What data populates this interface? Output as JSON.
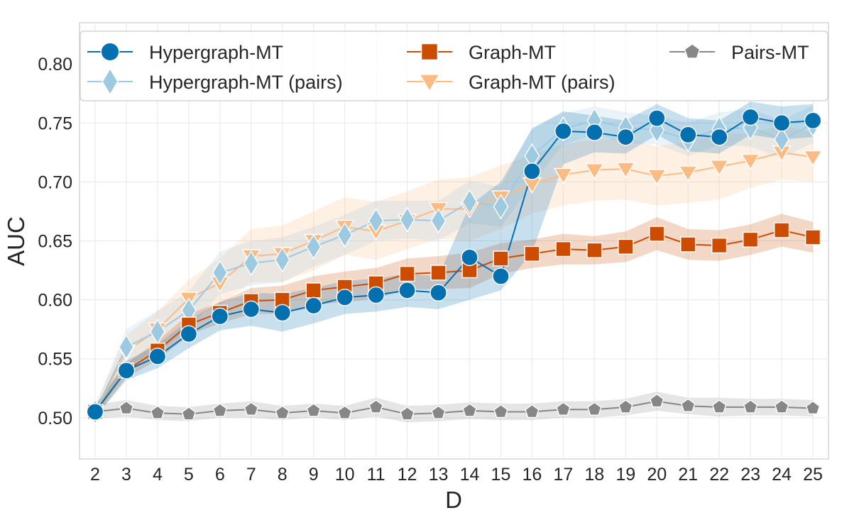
{
  "chart_data": {
    "type": "line",
    "xlabel": "D",
    "ylabel": "AUC",
    "x": [
      2,
      3,
      4,
      5,
      6,
      7,
      8,
      9,
      10,
      11,
      12,
      13,
      14,
      15,
      16,
      17,
      18,
      19,
      20,
      21,
      22,
      23,
      24,
      25
    ],
    "xlim": [
      1.5,
      25.5
    ],
    "ylim": [
      0.465,
      0.835
    ],
    "yticks": [
      0.5,
      0.55,
      0.6,
      0.65,
      0.7,
      0.75,
      0.8
    ],
    "grid": true,
    "legend_position": "top",
    "series": [
      {
        "name": "Graph-MT (pairs)",
        "color": "#fdbb84",
        "marker": "triangle-down",
        "values": [
          0.505,
          0.556,
          0.575,
          0.601,
          0.614,
          0.637,
          0.639,
          0.65,
          0.662,
          0.658,
          0.667,
          0.677,
          0.677,
          0.687,
          0.698,
          0.706,
          0.71,
          0.711,
          0.705,
          0.708,
          0.713,
          0.718,
          0.725,
          0.721
        ],
        "band": [
          [
            0.5,
            0.51
          ],
          [
            0.54,
            0.57
          ],
          [
            0.56,
            0.59
          ],
          [
            0.585,
            0.617
          ],
          [
            0.595,
            0.635
          ],
          [
            0.615,
            0.66
          ],
          [
            0.615,
            0.663
          ],
          [
            0.625,
            0.675
          ],
          [
            0.638,
            0.687
          ],
          [
            0.634,
            0.683
          ],
          [
            0.643,
            0.692
          ],
          [
            0.652,
            0.702
          ],
          [
            0.65,
            0.704
          ],
          [
            0.66,
            0.714
          ],
          [
            0.673,
            0.723
          ],
          [
            0.68,
            0.732
          ],
          [
            0.684,
            0.736
          ],
          [
            0.685,
            0.737
          ],
          [
            0.68,
            0.73
          ],
          [
            0.682,
            0.734
          ],
          [
            0.685,
            0.741
          ],
          [
            0.695,
            0.741
          ],
          [
            0.702,
            0.748
          ],
          [
            0.7,
            0.742
          ]
        ]
      },
      {
        "name": "Hypergraph-MT (pairs)",
        "color": "#9ecae1",
        "marker": "diamond",
        "values": [
          0.505,
          0.56,
          0.573,
          0.591,
          0.623,
          0.631,
          0.634,
          0.645,
          0.655,
          0.667,
          0.668,
          0.667,
          0.683,
          0.679,
          0.722,
          0.745,
          0.752,
          0.746,
          0.744,
          0.736,
          0.745,
          0.746,
          0.736,
          0.749
        ],
        "band": [
          [
            0.5,
            0.51
          ],
          [
            0.545,
            0.575
          ],
          [
            0.555,
            0.591
          ],
          [
            0.575,
            0.607
          ],
          [
            0.605,
            0.641
          ],
          [
            0.612,
            0.65
          ],
          [
            0.615,
            0.653
          ],
          [
            0.628,
            0.662
          ],
          [
            0.638,
            0.672
          ],
          [
            0.65,
            0.684
          ],
          [
            0.652,
            0.684
          ],
          [
            0.65,
            0.684
          ],
          [
            0.665,
            0.701
          ],
          [
            0.662,
            0.696
          ],
          [
            0.698,
            0.746
          ],
          [
            0.732,
            0.758
          ],
          [
            0.74,
            0.764
          ],
          [
            0.733,
            0.759
          ],
          [
            0.732,
            0.756
          ],
          [
            0.722,
            0.75
          ],
          [
            0.731,
            0.759
          ],
          [
            0.73,
            0.762
          ],
          [
            0.72,
            0.752
          ],
          [
            0.733,
            0.765
          ]
        ]
      },
      {
        "name": "Pairs-MT",
        "color": "#878787",
        "marker": "pentagon",
        "values": [
          0.505,
          0.508,
          0.504,
          0.503,
          0.506,
          0.507,
          0.504,
          0.506,
          0.504,
          0.509,
          0.503,
          0.504,
          0.506,
          0.505,
          0.505,
          0.507,
          0.507,
          0.509,
          0.514,
          0.51,
          0.509,
          0.509,
          0.509,
          0.508
        ],
        "band": [
          [
            0.499,
            0.511
          ],
          [
            0.501,
            0.515
          ],
          [
            0.498,
            0.51
          ],
          [
            0.497,
            0.509
          ],
          [
            0.5,
            0.512
          ],
          [
            0.5,
            0.514
          ],
          [
            0.498,
            0.51
          ],
          [
            0.5,
            0.512
          ],
          [
            0.498,
            0.51
          ],
          [
            0.501,
            0.517
          ],
          [
            0.496,
            0.51
          ],
          [
            0.497,
            0.511
          ],
          [
            0.499,
            0.513
          ],
          [
            0.498,
            0.512
          ],
          [
            0.498,
            0.512
          ],
          [
            0.5,
            0.514
          ],
          [
            0.5,
            0.514
          ],
          [
            0.502,
            0.516
          ],
          [
            0.506,
            0.522
          ],
          [
            0.503,
            0.517
          ],
          [
            0.501,
            0.517
          ],
          [
            0.502,
            0.516
          ],
          [
            0.502,
            0.516
          ],
          [
            0.501,
            0.515
          ]
        ]
      },
      {
        "name": "Graph-MT",
        "color": "#cc4c02",
        "marker": "square",
        "values": [
          0.505,
          0.54,
          0.557,
          0.579,
          0.589,
          0.599,
          0.6,
          0.608,
          0.611,
          0.614,
          0.622,
          0.623,
          0.625,
          0.635,
          0.639,
          0.643,
          0.642,
          0.645,
          0.656,
          0.647,
          0.646,
          0.651,
          0.659,
          0.653
        ],
        "band": [
          [
            0.5,
            0.51
          ],
          [
            0.534,
            0.546
          ],
          [
            0.549,
            0.565
          ],
          [
            0.57,
            0.588
          ],
          [
            0.58,
            0.598
          ],
          [
            0.588,
            0.61
          ],
          [
            0.588,
            0.612
          ],
          [
            0.596,
            0.62
          ],
          [
            0.598,
            0.624
          ],
          [
            0.601,
            0.627
          ],
          [
            0.609,
            0.635
          ],
          [
            0.609,
            0.637
          ],
          [
            0.61,
            0.64
          ],
          [
            0.622,
            0.648
          ],
          [
            0.627,
            0.651
          ],
          [
            0.63,
            0.656
          ],
          [
            0.63,
            0.654
          ],
          [
            0.632,
            0.658
          ],
          [
            0.642,
            0.67
          ],
          [
            0.634,
            0.66
          ],
          [
            0.633,
            0.659
          ],
          [
            0.638,
            0.664
          ],
          [
            0.645,
            0.673
          ],
          [
            0.64,
            0.666
          ]
        ]
      },
      {
        "name": "Hypergraph-MT",
        "color": "#0570b0",
        "marker": "circle",
        "values": [
          0.505,
          0.54,
          0.552,
          0.571,
          0.586,
          0.592,
          0.589,
          0.595,
          0.602,
          0.604,
          0.608,
          0.606,
          0.636,
          0.62,
          0.709,
          0.743,
          0.742,
          0.738,
          0.754,
          0.74,
          0.738,
          0.755,
          0.75,
          0.752
        ],
        "band": [
          [
            0.5,
            0.51
          ],
          [
            0.532,
            0.548
          ],
          [
            0.542,
            0.562
          ],
          [
            0.559,
            0.583
          ],
          [
            0.574,
            0.598
          ],
          [
            0.578,
            0.606
          ],
          [
            0.573,
            0.605
          ],
          [
            0.58,
            0.61
          ],
          [
            0.588,
            0.616
          ],
          [
            0.59,
            0.618
          ],
          [
            0.594,
            0.622
          ],
          [
            0.592,
            0.62
          ],
          [
            0.6,
            0.68
          ],
          [
            0.608,
            0.7
          ],
          [
            0.64,
            0.745
          ],
          [
            0.715,
            0.76
          ],
          [
            0.725,
            0.756
          ],
          [
            0.724,
            0.752
          ],
          [
            0.74,
            0.766
          ],
          [
            0.726,
            0.754
          ],
          [
            0.724,
            0.752
          ],
          [
            0.74,
            0.768
          ],
          [
            0.736,
            0.764
          ],
          [
            0.738,
            0.766
          ]
        ]
      }
    ],
    "legend": [
      {
        "name": "Hypergraph-MT",
        "color": "#0570b0",
        "marker": "circle"
      },
      {
        "name": "Hypergraph-MT (pairs)",
        "color": "#9ecae1",
        "marker": "diamond"
      },
      {
        "name": "Graph-MT",
        "color": "#cc4c02",
        "marker": "square"
      },
      {
        "name": "Graph-MT (pairs)",
        "color": "#fdbb84",
        "marker": "triangle-down"
      },
      {
        "name": "Pairs-MT",
        "color": "#878787",
        "marker": "pentagon"
      }
    ]
  }
}
